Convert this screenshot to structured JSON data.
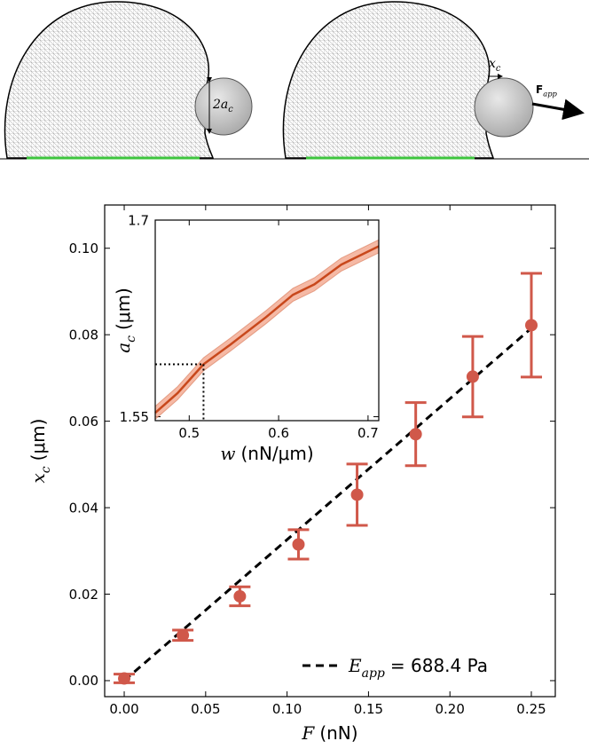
{
  "illustration": {
    "left_label": {
      "main": "2a",
      "sub": "c"
    },
    "right_label": {
      "main": "x",
      "sub": "c"
    },
    "force_label": {
      "main": "F",
      "sub": "app"
    }
  },
  "chart_data": [
    {
      "type": "errorbar",
      "xlabel": {
        "var": "F",
        "unit": "(nN)"
      },
      "ylabel": {
        "var": "x",
        "sub": "c",
        "unit": "(μm)"
      },
      "x": [
        0,
        0.036,
        0.071,
        0.107,
        0.143,
        0.179,
        0.214,
        0.25
      ],
      "series": [
        {
          "color": "#d0584a",
          "values": [
            0.0005,
            0.0105,
            0.0195,
            0.0315,
            0.043,
            0.057,
            0.0703,
            0.0822
          ],
          "errors": [
            0.001,
            0.0012,
            0.0022,
            0.0034,
            0.0071,
            0.0073,
            0.0093,
            0.012
          ]
        }
      ],
      "fit": {
        "x": [
          0,
          0.25
        ],
        "y": [
          0,
          0.0815
        ],
        "color": "#000000",
        "label": {
          "var": "E",
          "sub": "app",
          "text": "= 688.4 Pa"
        }
      },
      "legend": "lower right",
      "xlim": [
        -0.012,
        0.2647
      ],
      "ylim": [
        -0.0037,
        0.11
      ],
      "xticks": [
        {
          "value": 0,
          "label": "0.00"
        },
        {
          "value": 0.05,
          "label": "0.05"
        },
        {
          "value": 0.1,
          "label": "0.10"
        },
        {
          "value": 0.15,
          "label": "0.15"
        },
        {
          "value": 0.2,
          "label": "0.20"
        },
        {
          "value": 0.25,
          "label": "0.25"
        }
      ],
      "yticks": [
        {
          "value": 0,
          "label": "0.00"
        },
        {
          "value": 0.02,
          "label": "0.02"
        },
        {
          "value": 0.04,
          "label": "0.04"
        },
        {
          "value": 0.06,
          "label": "0.06"
        },
        {
          "value": 0.08,
          "label": "0.08"
        },
        {
          "value": 0.1,
          "label": "0.10"
        }
      ]
    },
    {
      "type": "line",
      "xlabel": {
        "var": "w",
        "unit": "(nN/μm)"
      },
      "ylabel": {
        "var": "a",
        "sub": "c",
        "unit": "(μm)"
      },
      "x": [
        0.462,
        0.487,
        0.516,
        0.546,
        0.586,
        0.616,
        0.64,
        0.67,
        0.712
      ],
      "series": [
        {
          "color": "#c8481c",
          "band_color": "#f2a88e",
          "values": [
            1.553,
            1.568,
            1.59,
            1.605,
            1.626,
            1.643,
            1.651,
            1.666,
            1.68
          ],
          "lower": [
            1.548,
            1.563,
            1.585,
            1.6,
            1.621,
            1.638,
            1.646,
            1.661,
            1.675
          ],
          "upper": [
            1.558,
            1.573,
            1.595,
            1.61,
            1.631,
            1.648,
            1.656,
            1.671,
            1.685
          ]
        }
      ],
      "marker": {
        "x": 0.516,
        "y": 1.59
      },
      "xlim": [
        0.462,
        0.712
      ],
      "ylim": [
        1.547,
        1.7
      ],
      "xticks": [
        {
          "value": 0.5,
          "label": "0.5"
        },
        {
          "value": 0.6,
          "label": "0.6"
        },
        {
          "value": 0.7,
          "label": "0.7"
        }
      ],
      "yticks": [
        1.55,
        1.7
      ]
    }
  ]
}
